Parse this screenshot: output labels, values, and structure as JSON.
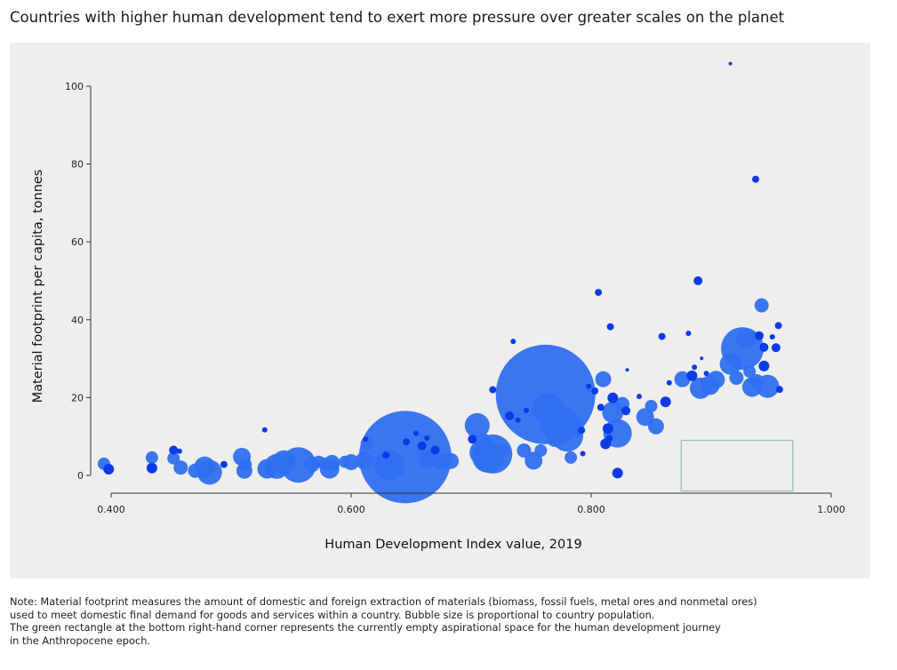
{
  "title": "Countries with higher human development tend to exert more pressure over greater scales on the planet",
  "note": {
    "lines": [
      "Note: Material footprint measures the amount of domestic and foreign extraction of materials (biomass, fossil fuels, metal ores and nonmetal ores)",
      "used to meet domestic final demand for goods and services within a country. Bubble size is proportional to country population.",
      "The green rectangle at the bottom right-hand corner represents the currently empty aspirational space for the human development journey",
      "in the Anthropocene epoch."
    ]
  },
  "colors": {
    "bubble_light": "#2f6ff0",
    "bubble_dark": "#0a3be8",
    "rect": "#8fc4aa",
    "axis": "#333333"
  },
  "chart_data": {
    "type": "scatter",
    "title": "Countries with higher human development tend to exert more pressure over greater scales on the planet",
    "xlabel": "Human Development Index value, 2019",
    "ylabel": "Material footprint per capita, tonnes",
    "xlim": [
      0.4,
      1.0
    ],
    "ylim": [
      0,
      100
    ],
    "xticks": [
      0.4,
      0.6,
      0.8,
      1.0
    ],
    "xtick_labels": [
      "0.400",
      "0.600",
      "0.800",
      "1.000"
    ],
    "yticks": [
      0,
      20,
      40,
      60,
      80,
      100
    ],
    "ytick_labels": [
      "0",
      "20",
      "40",
      "60",
      "80",
      "100"
    ],
    "grid": false,
    "aspirational_space": {
      "x": [
        0.875,
        0.968
      ],
      "y": [
        -4,
        9
      ]
    },
    "bubble_size": "population",
    "points": [
      {
        "x": 0.394,
        "y": 3.0,
        "r": 7
      },
      {
        "x": 0.398,
        "y": 1.6,
        "r": 6
      },
      {
        "x": 0.434,
        "y": 4.6,
        "r": 7
      },
      {
        "x": 0.434,
        "y": 1.9,
        "r": 6
      },
      {
        "x": 0.452,
        "y": 4.4,
        "r": 7
      },
      {
        "x": 0.452,
        "y": 6.5,
        "r": 5
      },
      {
        "x": 0.457,
        "y": 6.2,
        "r": 3
      },
      {
        "x": 0.458,
        "y": 2.0,
        "r": 8
      },
      {
        "x": 0.47,
        "y": 1.2,
        "r": 8
      },
      {
        "x": 0.478,
        "y": 2.1,
        "r": 12
      },
      {
        "x": 0.482,
        "y": 0.8,
        "r": 14
      },
      {
        "x": 0.494,
        "y": 2.8,
        "r": 4
      },
      {
        "x": 0.509,
        "y": 4.8,
        "r": 10
      },
      {
        "x": 0.511,
        "y": 1.2,
        "r": 9
      },
      {
        "x": 0.512,
        "y": 2.8,
        "r": 7
      },
      {
        "x": 0.528,
        "y": 11.7,
        "r": 3
      },
      {
        "x": 0.53,
        "y": 1.7,
        "r": 11
      },
      {
        "x": 0.538,
        "y": 2.3,
        "r": 14
      },
      {
        "x": 0.544,
        "y": 3.5,
        "r": 13
      },
      {
        "x": 0.556,
        "y": 2.7,
        "r": 20
      },
      {
        "x": 0.567,
        "y": 2.8,
        "r": 9
      },
      {
        "x": 0.573,
        "y": 3.5,
        "r": 7
      },
      {
        "x": 0.578,
        "y": 3.0,
        "r": 7
      },
      {
        "x": 0.582,
        "y": 1.7,
        "r": 11
      },
      {
        "x": 0.584,
        "y": 3.2,
        "r": 9
      },
      {
        "x": 0.595,
        "y": 3.5,
        "r": 7
      },
      {
        "x": 0.6,
        "y": 3.4,
        "r": 9
      },
      {
        "x": 0.611,
        "y": 3.8,
        "r": 10
      },
      {
        "x": 0.612,
        "y": 9.3,
        "r": 3
      },
      {
        "x": 0.613,
        "y": 8.2,
        "r": 7
      },
      {
        "x": 0.629,
        "y": 5.2,
        "r": 4
      },
      {
        "x": 0.632,
        "y": 2.6,
        "r": 17
      },
      {
        "x": 0.645,
        "y": 4.7,
        "r": 52
      },
      {
        "x": 0.646,
        "y": 8.6,
        "r": 4
      },
      {
        "x": 0.654,
        "y": 10.8,
        "r": 3
      },
      {
        "x": 0.659,
        "y": 7.6,
        "r": 5
      },
      {
        "x": 0.663,
        "y": 9.6,
        "r": 3
      },
      {
        "x": 0.664,
        "y": 4.1,
        "r": 10
      },
      {
        "x": 0.67,
        "y": 6.5,
        "r": 5
      },
      {
        "x": 0.675,
        "y": 3.6,
        "r": 9
      },
      {
        "x": 0.683,
        "y": 3.7,
        "r": 9
      },
      {
        "x": 0.701,
        "y": 9.3,
        "r": 5
      },
      {
        "x": 0.705,
        "y": 12.8,
        "r": 14
      },
      {
        "x": 0.709,
        "y": 5.9,
        "r": 14
      },
      {
        "x": 0.71,
        "y": 8.5,
        "r": 10
      },
      {
        "x": 0.714,
        "y": 4.8,
        "r": 18
      },
      {
        "x": 0.718,
        "y": 5.5,
        "r": 22
      },
      {
        "x": 0.718,
        "y": 22.0,
        "r": 4
      },
      {
        "x": 0.727,
        "y": 6.4,
        "r": 7
      },
      {
        "x": 0.732,
        "y": 15.3,
        "r": 5
      },
      {
        "x": 0.735,
        "y": 34.4,
        "r": 3
      },
      {
        "x": 0.739,
        "y": 14.2,
        "r": 3
      },
      {
        "x": 0.744,
        "y": 6.4,
        "r": 8
      },
      {
        "x": 0.746,
        "y": 16.7,
        "r": 3
      },
      {
        "x": 0.752,
        "y": 3.8,
        "r": 10
      },
      {
        "x": 0.758,
        "y": 6.4,
        "r": 7
      },
      {
        "x": 0.762,
        "y": 20.8,
        "r": 56
      },
      {
        "x": 0.764,
        "y": 17.1,
        "r": 18
      },
      {
        "x": 0.768,
        "y": 13.0,
        "r": 15
      },
      {
        "x": 0.77,
        "y": 9.6,
        "r": 10
      },
      {
        "x": 0.774,
        "y": 11.8,
        "r": 16
      },
      {
        "x": 0.777,
        "y": 14.0,
        "r": 16
      },
      {
        "x": 0.78,
        "y": 10.2,
        "r": 18
      },
      {
        "x": 0.783,
        "y": 4.6,
        "r": 7
      },
      {
        "x": 0.785,
        "y": 12.5,
        "r": 12
      },
      {
        "x": 0.792,
        "y": 11.6,
        "r": 4
      },
      {
        "x": 0.793,
        "y": 5.6,
        "r": 3
      },
      {
        "x": 0.798,
        "y": 22.9,
        "r": 3
      },
      {
        "x": 0.803,
        "y": 21.7,
        "r": 4
      },
      {
        "x": 0.806,
        "y": 47.0,
        "r": 4
      },
      {
        "x": 0.808,
        "y": 17.5,
        "r": 4
      },
      {
        "x": 0.81,
        "y": 24.7,
        "r": 9
      },
      {
        "x": 0.812,
        "y": 8.1,
        "r": 6
      },
      {
        "x": 0.814,
        "y": 12.0,
        "r": 6
      },
      {
        "x": 0.815,
        "y": 9.5,
        "r": 4
      },
      {
        "x": 0.816,
        "y": 38.2,
        "r": 4
      },
      {
        "x": 0.818,
        "y": 16.2,
        "r": 12
      },
      {
        "x": 0.818,
        "y": 19.9,
        "r": 6
      },
      {
        "x": 0.822,
        "y": 10.8,
        "r": 16
      },
      {
        "x": 0.822,
        "y": 0.6,
        "r": 6
      },
      {
        "x": 0.826,
        "y": 18.3,
        "r": 8
      },
      {
        "x": 0.829,
        "y": 16.6,
        "r": 5
      },
      {
        "x": 0.83,
        "y": 27.1,
        "r": 2
      },
      {
        "x": 0.84,
        "y": 20.3,
        "r": 3
      },
      {
        "x": 0.845,
        "y": 15.0,
        "r": 10
      },
      {
        "x": 0.85,
        "y": 17.8,
        "r": 7
      },
      {
        "x": 0.854,
        "y": 12.6,
        "r": 9
      },
      {
        "x": 0.859,
        "y": 35.7,
        "r": 4
      },
      {
        "x": 0.862,
        "y": 18.9,
        "r": 6
      },
      {
        "x": 0.865,
        "y": 23.8,
        "r": 3
      },
      {
        "x": 0.876,
        "y": 24.7,
        "r": 9
      },
      {
        "x": 0.881,
        "y": 36.5,
        "r": 3
      },
      {
        "x": 0.884,
        "y": 25.6,
        "r": 6
      },
      {
        "x": 0.886,
        "y": 27.8,
        "r": 3
      },
      {
        "x": 0.889,
        "y": 50.0,
        "r": 5
      },
      {
        "x": 0.891,
        "y": 22.4,
        "r": 12
      },
      {
        "x": 0.892,
        "y": 30.1,
        "r": 2
      },
      {
        "x": 0.896,
        "y": 26.2,
        "r": 3
      },
      {
        "x": 0.899,
        "y": 23.2,
        "r": 11
      },
      {
        "x": 0.904,
        "y": 24.6,
        "r": 10
      },
      {
        "x": 0.916,
        "y": 105.8,
        "r": 2
      },
      {
        "x": 0.916,
        "y": 28.6,
        "r": 12
      },
      {
        "x": 0.921,
        "y": 25.1,
        "r": 8
      },
      {
        "x": 0.926,
        "y": 32.6,
        "r": 24
      },
      {
        "x": 0.929,
        "y": 35.1,
        "r": 11
      },
      {
        "x": 0.932,
        "y": 26.7,
        "r": 7
      },
      {
        "x": 0.934,
        "y": 22.7,
        "r": 11
      },
      {
        "x": 0.937,
        "y": 76.1,
        "r": 4
      },
      {
        "x": 0.938,
        "y": 24.2,
        "r": 8
      },
      {
        "x": 0.94,
        "y": 35.9,
        "r": 5
      },
      {
        "x": 0.942,
        "y": 43.7,
        "r": 8
      },
      {
        "x": 0.944,
        "y": 28.1,
        "r": 6
      },
      {
        "x": 0.944,
        "y": 32.9,
        "r": 5
      },
      {
        "x": 0.947,
        "y": 22.9,
        "r": 13
      },
      {
        "x": 0.951,
        "y": 35.6,
        "r": 3
      },
      {
        "x": 0.954,
        "y": 32.8,
        "r": 5
      },
      {
        "x": 0.956,
        "y": 38.5,
        "r": 4
      },
      {
        "x": 0.957,
        "y": 22.1,
        "r": 4
      }
    ]
  }
}
